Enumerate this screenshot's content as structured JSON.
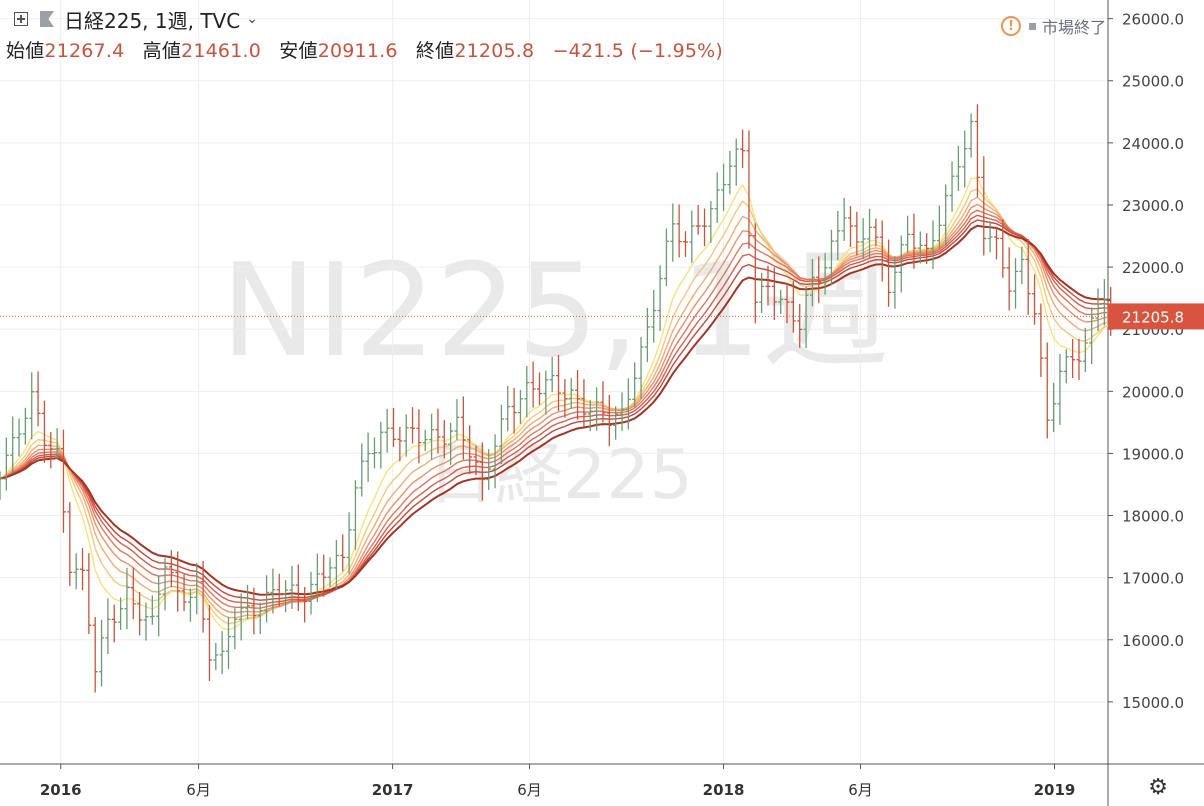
{
  "header": {
    "symbol_title": "日経225, 1週, TVC",
    "open_label": "始値",
    "open_value": "21267.4",
    "high_label": "高値",
    "high_value": "21461.0",
    "low_label": "安値",
    "low_value": "20911.6",
    "close_label": "終値",
    "close_value": "21205.8",
    "change": "−421.5 (−1.95%)"
  },
  "status": {
    "market_state": "市場終了"
  },
  "watermark": {
    "main": "NI225, 1週",
    "sub": "日経225"
  },
  "icons": {
    "add": "plus-square-icon",
    "flag": "flag-icon",
    "dropdown": "chevron-down-icon",
    "warning": "warning-icon",
    "settings": "gear-icon"
  },
  "colors": {
    "up": "#6a9a74",
    "down": "#c9533a",
    "ma_fast": "#f7e27a",
    "ma_slow": "#a83222",
    "last_price_line": "#e05a4a"
  },
  "chart_data": {
    "type": "candlestick",
    "y_axis": {
      "min": 14000,
      "max": 26300,
      "ticks": [
        "15000.0",
        "16000.0",
        "17000.0",
        "18000.0",
        "19000.0",
        "20000.0",
        "21000.0",
        "22000.0",
        "23000.0",
        "24000.0",
        "25000.0",
        "26000.0"
      ]
    },
    "x_axis": {
      "start": "2015-10-26",
      "end": "2019-03-01",
      "ticks": [
        {
          "date": "2016-01-01",
          "label": "2016",
          "bold": true
        },
        {
          "date": "2016-06-01",
          "label": "6月",
          "bold": false
        },
        {
          "date": "2017-01-01",
          "label": "2017",
          "bold": true
        },
        {
          "date": "2017-06-01",
          "label": "6月",
          "bold": false
        },
        {
          "date": "2018-01-01",
          "label": "2018",
          "bold": true
        },
        {
          "date": "2018-06-01",
          "label": "6月",
          "bold": false
        },
        {
          "date": "2019-01-01",
          "label": "2019",
          "bold": true
        }
      ]
    },
    "last_price": "21205.8",
    "close_path": [
      [
        "2015-10-26",
        18800
      ],
      [
        "2015-11-30",
        19800
      ],
      [
        "2015-12-14",
        19200
      ],
      [
        "2015-12-28",
        19000
      ],
      [
        "2016-01-11",
        17300
      ],
      [
        "2016-01-25",
        17000
      ],
      [
        "2016-02-08",
        15500
      ],
      [
        "2016-02-22",
        16200
      ],
      [
        "2016-03-14",
        16800
      ],
      [
        "2016-03-28",
        16500
      ],
      [
        "2016-04-11",
        16200
      ],
      [
        "2016-04-25",
        17200
      ],
      [
        "2016-05-09",
        16700
      ],
      [
        "2016-05-30",
        16900
      ],
      [
        "2016-06-13",
        15800
      ],
      [
        "2016-06-27",
        15600
      ],
      [
        "2016-07-11",
        16400
      ],
      [
        "2016-07-25",
        16500
      ],
      [
        "2016-08-15",
        16700
      ],
      [
        "2016-08-29",
        16800
      ],
      [
        "2016-09-19",
        16600
      ],
      [
        "2016-10-03",
        16900
      ],
      [
        "2016-10-24",
        17300
      ],
      [
        "2016-11-07",
        17200
      ],
      [
        "2016-11-21",
        18400
      ],
      [
        "2016-12-05",
        19000
      ],
      [
        "2016-12-19",
        19400
      ],
      [
        "2017-01-09",
        19300
      ],
      [
        "2017-01-30",
        19200
      ],
      [
        "2017-02-20",
        19300
      ],
      [
        "2017-03-13",
        19500
      ],
      [
        "2017-03-27",
        19000
      ],
      [
        "2017-04-10",
        18400
      ],
      [
        "2017-04-24",
        19200
      ],
      [
        "2017-05-08",
        19800
      ],
      [
        "2017-05-29",
        20000
      ],
      [
        "2017-06-12",
        20000
      ],
      [
        "2017-06-26",
        20100
      ],
      [
        "2017-07-17",
        20000
      ],
      [
        "2017-08-07",
        19700
      ],
      [
        "2017-08-28",
        19500
      ],
      [
        "2017-09-11",
        19600
      ],
      [
        "2017-09-25",
        20400
      ],
      [
        "2017-10-09",
        21000
      ],
      [
        "2017-10-23",
        21800
      ],
      [
        "2017-11-06",
        22600
      ],
      [
        "2017-11-20",
        22400
      ],
      [
        "2017-12-04",
        22800
      ],
      [
        "2017-12-18",
        22900
      ],
      [
        "2018-01-08",
        23600
      ],
      [
        "2018-01-22",
        23800
      ],
      [
        "2018-02-05",
        21500
      ],
      [
        "2018-02-19",
        21800
      ],
      [
        "2018-03-05",
        21400
      ],
      [
        "2018-03-26",
        21000
      ],
      [
        "2018-04-09",
        21800
      ],
      [
        "2018-04-23",
        22100
      ],
      [
        "2018-05-14",
        22900
      ],
      [
        "2018-05-28",
        22200
      ],
      [
        "2018-06-11",
        22700
      ],
      [
        "2018-07-02",
        21800
      ],
      [
        "2018-07-23",
        22500
      ],
      [
        "2018-08-13",
        22100
      ],
      [
        "2018-08-27",
        22800
      ],
      [
        "2018-09-17",
        23800
      ],
      [
        "2018-10-01",
        24200
      ],
      [
        "2018-10-15",
        22500
      ],
      [
        "2018-10-29",
        22300
      ],
      [
        "2018-11-12",
        21800
      ],
      [
        "2018-11-26",
        22100
      ],
      [
        "2018-12-10",
        21300
      ],
      [
        "2018-12-24",
        19400
      ],
      [
        "2019-01-07",
        20300
      ],
      [
        "2019-01-21",
        20600
      ],
      [
        "2019-02-04",
        20800
      ],
      [
        "2019-02-18",
        21400
      ],
      [
        "2019-02-25",
        21500
      ],
      [
        "2019-03-04",
        21205.8
      ]
    ],
    "ma_periods": [
      8,
      11,
      14,
      17,
      20,
      23,
      26,
      30
    ]
  }
}
